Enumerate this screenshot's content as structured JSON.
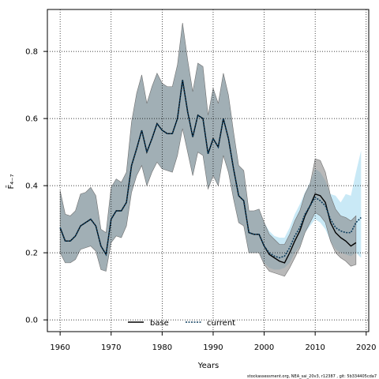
{
  "chart_data": {
    "type": "line",
    "title": "",
    "xlabel": "Years",
    "ylabel": "F̄₄₋₇",
    "xlim": [
      1957.5,
      2020.5
    ],
    "ylim": [
      -0.035,
      0.925
    ],
    "xticks": [
      1960,
      1970,
      1980,
      1990,
      2000,
      2010,
      2020
    ],
    "yticks": [
      0.0,
      0.2,
      0.4,
      0.6,
      0.8
    ],
    "grid": true,
    "legend_position": "bottom-center",
    "credit": "stockassessment.org, NEA_sai_20v3, r12387 , git: 5b334405cda7",
    "series": [
      {
        "name": "base",
        "style": "solid",
        "color": "#000000",
        "band_color": "#808080",
        "x": [
          1960,
          1961,
          1962,
          1963,
          1964,
          1965,
          1966,
          1967,
          1968,
          1969,
          1970,
          1971,
          1972,
          1973,
          1974,
          1975,
          1976,
          1977,
          1978,
          1979,
          1980,
          1981,
          1982,
          1983,
          1984,
          1985,
          1986,
          1987,
          1988,
          1989,
          1990,
          1991,
          1992,
          1993,
          1994,
          1995,
          1996,
          1997,
          1998,
          1999,
          2000,
          2001,
          2002,
          2003,
          2004,
          2005,
          2006,
          2007,
          2008,
          2009,
          2010,
          2011,
          2012,
          2013,
          2014,
          2015,
          2016,
          2017,
          2018
        ],
        "values": [
          0.275,
          0.235,
          0.235,
          0.25,
          0.28,
          0.29,
          0.3,
          0.28,
          0.22,
          0.195,
          0.3,
          0.325,
          0.325,
          0.35,
          0.46,
          0.51,
          0.565,
          0.5,
          0.54,
          0.585,
          0.565,
          0.555,
          0.555,
          0.6,
          0.715,
          0.62,
          0.545,
          0.61,
          0.6,
          0.495,
          0.54,
          0.515,
          0.6,
          0.54,
          0.45,
          0.37,
          0.355,
          0.26,
          0.255,
          0.255,
          0.22,
          0.195,
          0.185,
          0.175,
          0.17,
          0.2,
          0.235,
          0.265,
          0.31,
          0.34,
          0.375,
          0.37,
          0.35,
          0.29,
          0.26,
          0.245,
          0.235,
          0.22,
          0.23
        ],
        "lower": [
          0.2,
          0.17,
          0.17,
          0.18,
          0.21,
          0.215,
          0.22,
          0.205,
          0.15,
          0.145,
          0.23,
          0.25,
          0.245,
          0.28,
          0.38,
          0.43,
          0.46,
          0.4,
          0.44,
          0.47,
          0.45,
          0.445,
          0.44,
          0.49,
          0.57,
          0.5,
          0.43,
          0.5,
          0.49,
          0.39,
          0.43,
          0.4,
          0.49,
          0.44,
          0.36,
          0.29,
          0.28,
          0.2,
          0.2,
          0.2,
          0.165,
          0.145,
          0.14,
          0.135,
          0.13,
          0.155,
          0.185,
          0.215,
          0.26,
          0.29,
          0.32,
          0.31,
          0.29,
          0.235,
          0.2,
          0.185,
          0.175,
          0.16,
          0.165
        ],
        "upper": [
          0.385,
          0.315,
          0.31,
          0.325,
          0.375,
          0.38,
          0.395,
          0.37,
          0.27,
          0.26,
          0.395,
          0.42,
          0.41,
          0.44,
          0.59,
          0.675,
          0.73,
          0.645,
          0.695,
          0.735,
          0.705,
          0.695,
          0.695,
          0.76,
          0.885,
          0.775,
          0.68,
          0.765,
          0.755,
          0.61,
          0.69,
          0.645,
          0.735,
          0.67,
          0.56,
          0.46,
          0.445,
          0.325,
          0.325,
          0.33,
          0.29,
          0.255,
          0.24,
          0.225,
          0.225,
          0.255,
          0.295,
          0.325,
          0.375,
          0.405,
          0.48,
          0.475,
          0.44,
          0.37,
          0.33,
          0.31,
          0.305,
          0.295,
          0.31
        ]
      },
      {
        "name": "current",
        "style": "dashed",
        "color": "#0b3c5d",
        "band_color": "#87ceeb",
        "x": [
          1960,
          1961,
          1962,
          1963,
          1964,
          1965,
          1966,
          1967,
          1968,
          1969,
          1970,
          1971,
          1972,
          1973,
          1974,
          1975,
          1976,
          1977,
          1978,
          1979,
          1980,
          1981,
          1982,
          1983,
          1984,
          1985,
          1986,
          1987,
          1988,
          1989,
          1990,
          1991,
          1992,
          1993,
          1994,
          1995,
          1996,
          1997,
          1998,
          1999,
          2000,
          2001,
          2002,
          2003,
          2004,
          2005,
          2006,
          2007,
          2008,
          2009,
          2010,
          2011,
          2012,
          2013,
          2014,
          2015,
          2016,
          2017,
          2018,
          2019
        ],
        "values": [
          0.275,
          0.235,
          0.235,
          0.25,
          0.28,
          0.29,
          0.3,
          0.28,
          0.22,
          0.195,
          0.3,
          0.325,
          0.325,
          0.35,
          0.46,
          0.51,
          0.565,
          0.5,
          0.54,
          0.585,
          0.565,
          0.555,
          0.555,
          0.6,
          0.715,
          0.62,
          0.545,
          0.61,
          0.6,
          0.495,
          0.54,
          0.515,
          0.6,
          0.54,
          0.45,
          0.37,
          0.355,
          0.26,
          0.255,
          0.255,
          0.22,
          0.2,
          0.19,
          0.185,
          0.19,
          0.215,
          0.25,
          0.275,
          0.315,
          0.34,
          0.365,
          0.355,
          0.34,
          0.3,
          0.275,
          0.265,
          0.26,
          0.26,
          0.29,
          0.305
        ],
        "lower": [
          0.2,
          0.17,
          0.17,
          0.18,
          0.21,
          0.215,
          0.22,
          0.205,
          0.15,
          0.145,
          0.23,
          0.25,
          0.245,
          0.28,
          0.38,
          0.43,
          0.46,
          0.4,
          0.44,
          0.47,
          0.45,
          0.445,
          0.44,
          0.49,
          0.57,
          0.5,
          0.43,
          0.5,
          0.49,
          0.39,
          0.43,
          0.4,
          0.49,
          0.44,
          0.36,
          0.29,
          0.28,
          0.2,
          0.2,
          0.2,
          0.17,
          0.155,
          0.15,
          0.15,
          0.155,
          0.17,
          0.2,
          0.22,
          0.26,
          0.28,
          0.3,
          0.29,
          0.27,
          0.235,
          0.21,
          0.2,
          0.195,
          0.19,
          0.2,
          0.185
        ],
        "upper": [
          0.385,
          0.315,
          0.31,
          0.325,
          0.375,
          0.38,
          0.395,
          0.37,
          0.27,
          0.26,
          0.395,
          0.42,
          0.41,
          0.44,
          0.59,
          0.675,
          0.73,
          0.645,
          0.695,
          0.735,
          0.705,
          0.695,
          0.695,
          0.76,
          0.885,
          0.775,
          0.68,
          0.765,
          0.755,
          0.61,
          0.69,
          0.645,
          0.735,
          0.67,
          0.56,
          0.46,
          0.445,
          0.325,
          0.325,
          0.33,
          0.29,
          0.265,
          0.25,
          0.245,
          0.245,
          0.275,
          0.315,
          0.345,
          0.38,
          0.41,
          0.45,
          0.44,
          0.415,
          0.375,
          0.37,
          0.35,
          0.375,
          0.37,
          0.44,
          0.505
        ]
      }
    ]
  }
}
